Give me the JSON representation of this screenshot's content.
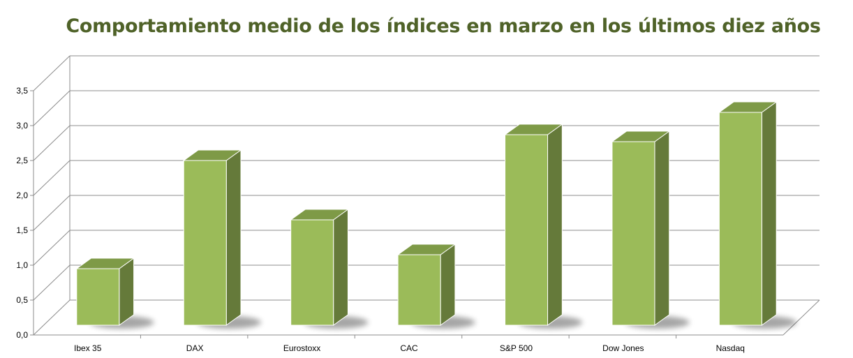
{
  "chart_data": {
    "type": "bar",
    "title": "Comportamiento medio de los índices en marzo en los últimos diez años",
    "categories": [
      "Ibex 35",
      "DAX",
      "Eurostoxx",
      "CAC",
      "S&P 500",
      "Dow Jones",
      "Nasdaq"
    ],
    "values": [
      0.8,
      2.35,
      1.5,
      1.0,
      2.72,
      2.62,
      3.04
    ],
    "ylim": [
      0,
      3.5
    ],
    "yticks": [
      "0,0",
      "0,5",
      "1,0",
      "1,5",
      "2,0",
      "2,5",
      "3,0",
      "3,5"
    ],
    "xlabel": "",
    "ylabel": "",
    "grid": true,
    "style": "3d-column",
    "colors": {
      "bar_front": "#9bbb59",
      "bar_side": "#657a3a",
      "bar_top": "#7e9a47",
      "title": "#4f6228",
      "grid": "#8c8c8c"
    }
  }
}
